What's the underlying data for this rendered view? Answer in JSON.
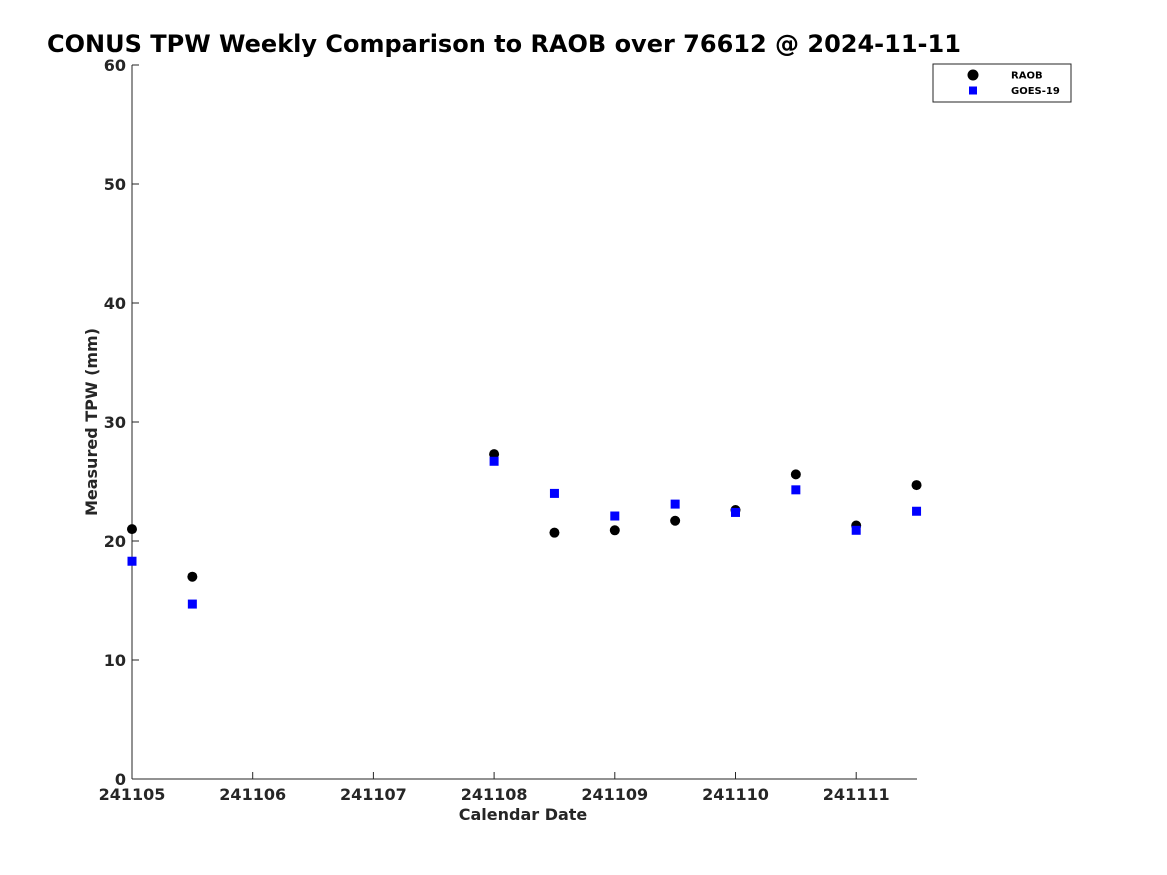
{
  "chart_data": {
    "type": "scatter",
    "title": "CONUS TPW Weekly Comparison to RAOB over 76612 @ 2024-11-11",
    "xlabel": "Calendar Date",
    "ylabel": "Measured TPW (mm)",
    "xlim": [
      "241105",
      "241111 12Z"
    ],
    "ylim": [
      0,
      60
    ],
    "x_ticks": [
      "241105",
      "241106",
      "241107",
      "241108",
      "241109",
      "241110",
      "241111"
    ],
    "y_ticks": [
      0,
      10,
      20,
      30,
      40,
      50,
      60
    ],
    "grid": false,
    "legend_position": "top-right",
    "series": [
      {
        "name": "RAOB",
        "marker": "circle",
        "color": "#000000",
        "points": [
          {
            "x": "241105 00Z",
            "y": 21.0
          },
          {
            "x": "241105 12Z",
            "y": 17.0
          },
          {
            "x": "241108 00Z",
            "y": 27.3
          },
          {
            "x": "241108 12Z",
            "y": 20.7
          },
          {
            "x": "241109 00Z",
            "y": 20.9
          },
          {
            "x": "241109 12Z",
            "y": 21.7
          },
          {
            "x": "241110 00Z",
            "y": 22.6
          },
          {
            "x": "241110 12Z",
            "y": 25.6
          },
          {
            "x": "241111 00Z",
            "y": 21.3
          },
          {
            "x": "241111 12Z",
            "y": 24.7
          }
        ]
      },
      {
        "name": "GOES-19",
        "marker": "square",
        "color": "#0000ff",
        "points": [
          {
            "x": "241105 00Z",
            "y": 18.3
          },
          {
            "x": "241105 12Z",
            "y": 14.7
          },
          {
            "x": "241108 00Z",
            "y": 26.7
          },
          {
            "x": "241108 12Z",
            "y": 24.0
          },
          {
            "x": "241109 00Z",
            "y": 22.1
          },
          {
            "x": "241109 12Z",
            "y": 23.1
          },
          {
            "x": "241110 00Z",
            "y": 22.4
          },
          {
            "x": "241110 12Z",
            "y": 24.3
          },
          {
            "x": "241111 00Z",
            "y": 20.9
          },
          {
            "x": "241111 12Z",
            "y": 22.5
          }
        ]
      }
    ]
  }
}
